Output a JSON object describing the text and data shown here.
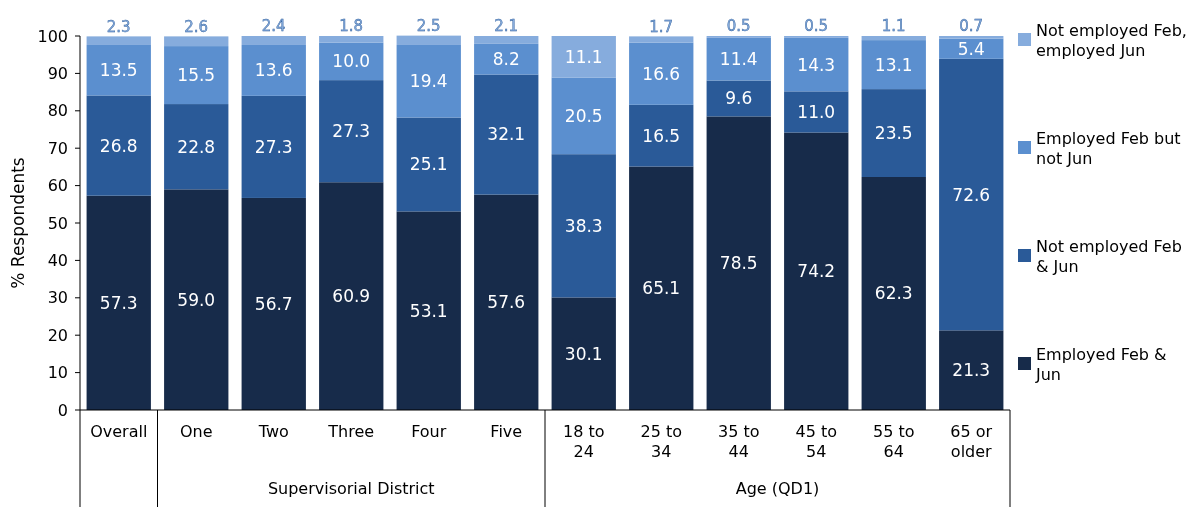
{
  "chart_data": {
    "type": "bar",
    "stacked": true,
    "ylabel": "% Respondents",
    "categories": [
      "Overall",
      "One",
      "Two",
      "Three",
      "Four",
      "Five",
      "18 to 24",
      "25 to 34",
      "35 to 44",
      "45 to 54",
      "55 to 64",
      "65 or older"
    ],
    "series": [
      {
        "name": "Employed Feb & Jun",
        "color": "#172b4a",
        "values": [
          57.3,
          59.0,
          56.7,
          60.9,
          53.1,
          57.6,
          30.1,
          65.1,
          78.5,
          74.2,
          62.3,
          21.3
        ],
        "value_labels": [
          "57.3",
          "59.0",
          "56.7",
          "60.9",
          "53.1",
          "57.6",
          "30.1",
          "65.1",
          "78.5",
          "74.2",
          "62.3",
          "21.3"
        ]
      },
      {
        "name": "Not employed Feb & Jun",
        "color": "#2a5a98",
        "values": [
          26.8,
          22.8,
          27.3,
          27.3,
          25.1,
          32.1,
          38.3,
          16.5,
          9.6,
          11.0,
          23.5,
          72.6
        ],
        "value_labels": [
          "26.8",
          "22.8",
          "27.3",
          "27.3",
          "25.1",
          "32.1",
          "38.3",
          "16.5",
          "9.6",
          "11.0",
          "23.5",
          "72.6"
        ]
      },
      {
        "name": "Employed Feb but not Jun",
        "color": "#5b8fcf",
        "values": [
          13.5,
          15.5,
          13.6,
          10.0,
          19.4,
          8.2,
          20.5,
          16.6,
          11.4,
          14.3,
          13.1,
          5.4
        ],
        "value_labels": [
          "13.5",
          "15.5",
          "13.6",
          "10.0",
          "19.4",
          "8.2",
          "20.5",
          "16.6",
          "11.4",
          "14.3",
          "13.1",
          "5.4"
        ]
      },
      {
        "name": "Not employed Feb, employed Jun",
        "color": "#86acdd",
        "values": [
          2.3,
          2.6,
          2.4,
          1.8,
          2.5,
          2.1,
          11.1,
          1.7,
          0.5,
          0.5,
          1.1,
          0.7
        ],
        "value_labels": [
          "2.3",
          "2.6",
          "2.4",
          "1.8",
          "2.5",
          "2.1",
          "11.1",
          "1.7",
          "0.5",
          "0.5",
          "1.1",
          "0.7"
        ]
      }
    ],
    "ylim": [
      0,
      100
    ],
    "yticks": [
      0,
      10,
      20,
      30,
      40,
      50,
      60,
      70,
      80,
      90,
      100
    ],
    "legend": "right",
    "annotations": [
      "Supervisorial District",
      "Age (QD1)"
    ]
  }
}
